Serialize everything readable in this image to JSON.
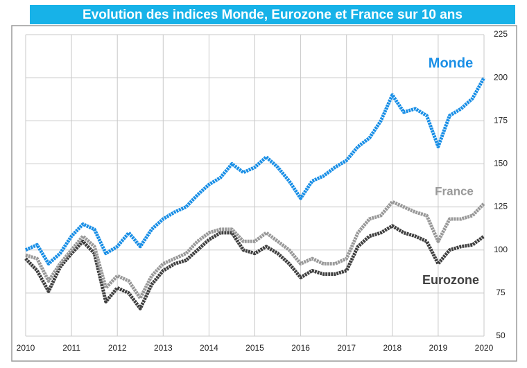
{
  "chart_data": {
    "type": "line",
    "title": "Evolution des indices Monde, Eurozone et France sur 10 ans",
    "x": [
      2010,
      2010.25,
      2010.5,
      2010.75,
      2011,
      2011.25,
      2011.5,
      2011.75,
      2012,
      2012.25,
      2012.5,
      2012.75,
      2013,
      2013.25,
      2013.5,
      2013.75,
      2014,
      2014.25,
      2014.5,
      2014.75,
      2015,
      2015.25,
      2015.5,
      2015.75,
      2016,
      2016.25,
      2016.5,
      2016.75,
      2017,
      2017.25,
      2017.5,
      2017.75,
      2018,
      2018.25,
      2018.5,
      2018.75,
      2019,
      2019.25,
      2019.5,
      2019.75,
      2020
    ],
    "series": [
      {
        "name": "Monde",
        "color": "#1a8fe6",
        "values": [
          100,
          103,
          92,
          98,
          108,
          115,
          112,
          98,
          102,
          110,
          102,
          112,
          118,
          122,
          125,
          132,
          138,
          142,
          150,
          145,
          148,
          154,
          148,
          140,
          130,
          140,
          143,
          148,
          152,
          160,
          165,
          175,
          190,
          180,
          182,
          178,
          160,
          178,
          182,
          188,
          200
        ]
      },
      {
        "name": "France",
        "color": "#999999",
        "values": [
          97,
          95,
          82,
          92,
          100,
          108,
          102,
          78,
          85,
          82,
          72,
          85,
          92,
          95,
          98,
          105,
          110,
          112,
          112,
          105,
          105,
          110,
          105,
          100,
          92,
          95,
          92,
          92,
          95,
          110,
          118,
          120,
          128,
          125,
          122,
          120,
          105,
          118,
          118,
          120,
          127
        ]
      },
      {
        "name": "Eurozone",
        "color": "#404040",
        "values": [
          95,
          88,
          76,
          90,
          98,
          105,
          98,
          70,
          78,
          75,
          66,
          80,
          88,
          92,
          94,
          100,
          106,
          110,
          110,
          100,
          98,
          102,
          98,
          92,
          84,
          88,
          86,
          86,
          88,
          102,
          108,
          110,
          114,
          110,
          108,
          105,
          92,
          100,
          102,
          103,
          108
        ]
      }
    ],
    "xlim": [
      2010,
      2020
    ],
    "xticks": [
      2010,
      2011,
      2012,
      2013,
      2014,
      2015,
      2016,
      2017,
      2018,
      2019,
      2020
    ],
    "ylim": [
      50,
      225
    ],
    "yticks": [
      50,
      75,
      100,
      125,
      150,
      175,
      200,
      225
    ],
    "grid": true
  }
}
